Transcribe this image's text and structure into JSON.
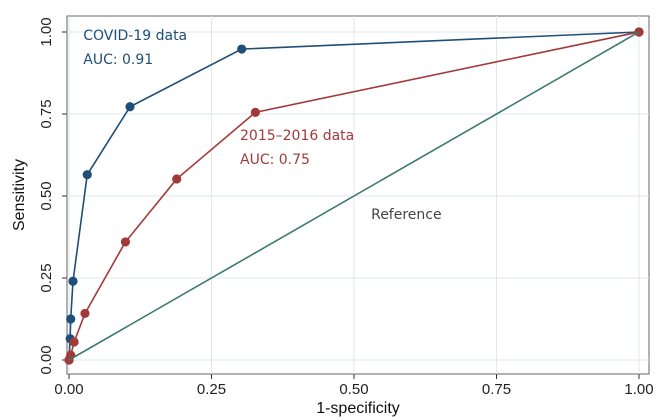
{
  "chart_data": {
    "type": "line",
    "title": "",
    "xlabel": "1-specificity",
    "ylabel": "Sensitivity",
    "xlim": [
      0,
      1
    ],
    "ylim": [
      0,
      1
    ],
    "x_ticks": [
      0,
      0.25,
      0.5,
      0.75,
      1
    ],
    "x_tick_labels": [
      "0.00",
      "0.25",
      "0.50",
      "0.75",
      "1.00"
    ],
    "y_ticks": [
      0,
      0.25,
      0.5,
      0.75,
      1
    ],
    "y_tick_labels": [
      "0.00",
      "0.25",
      "0.50",
      "0.75",
      "1.00"
    ],
    "grid": true,
    "legend": "none",
    "series": [
      {
        "key": "covid",
        "color": "#1f4e79",
        "markers": true,
        "points": [
          {
            "x": 0,
            "y": 0
          },
          {
            "x": 0.002,
            "y": 0.065
          },
          {
            "x": 0.003,
            "y": 0.125
          },
          {
            "x": 0.007,
            "y": 0.24
          },
          {
            "x": 0.032,
            "y": 0.565
          },
          {
            "x": 0.107,
            "y": 0.772
          },
          {
            "x": 0.303,
            "y": 0.948
          },
          {
            "x": 1,
            "y": 1
          }
        ]
      },
      {
        "key": "y2015",
        "color": "#a33a3a",
        "markers": true,
        "points": [
          {
            "x": 0,
            "y": 0
          },
          {
            "x": 0.003,
            "y": 0.015
          },
          {
            "x": 0.009,
            "y": 0.055
          },
          {
            "x": 0.028,
            "y": 0.142
          },
          {
            "x": 0.099,
            "y": 0.36
          },
          {
            "x": 0.189,
            "y": 0.552
          },
          {
            "x": 0.327,
            "y": 0.755
          },
          {
            "x": 1,
            "y": 1
          }
        ]
      },
      {
        "key": "reference",
        "color": "#3d7a6e",
        "markers": false,
        "points": [
          {
            "x": 0,
            "y": 0
          },
          {
            "x": 1,
            "y": 1
          }
        ]
      }
    ],
    "annotations": [
      {
        "series": "covid",
        "lines": [
          "COVID-19 data",
          "AUC: 0.91"
        ],
        "x": 0.025,
        "y": 0.975,
        "color": "#1f4e79"
      },
      {
        "series": "y2015",
        "lines": [
          "2015–2016 data",
          "AUC: 0.75"
        ],
        "x": 0.3,
        "y": 0.67,
        "color": "#a33a3a"
      },
      {
        "series": "reference",
        "lines": [
          "Reference"
        ],
        "x": 0.53,
        "y": 0.43,
        "color": "#444444"
      }
    ]
  }
}
